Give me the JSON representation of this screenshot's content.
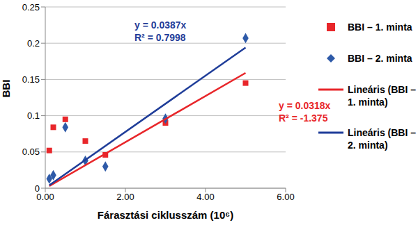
{
  "chart_data": {
    "type": "scatter",
    "x_label": "Fárasztási ciklusszám (10⁶)",
    "y_label": "BBI",
    "xlim": [
      0,
      6
    ],
    "xticks": [
      {
        "value": 0,
        "label": "0.00"
      },
      {
        "value": 2,
        "label": "2.00"
      },
      {
        "value": 4,
        "label": "4.00"
      },
      {
        "value": 6,
        "label": "6.00"
      }
    ],
    "ylim": [
      0,
      0.25
    ],
    "yticks": [
      0,
      0.05,
      0.1,
      0.15,
      0.2,
      0.25
    ],
    "grid": true,
    "legend": "right",
    "series": [
      {
        "name": "BBI – 1. minta",
        "type": "scatter",
        "marker": "square",
        "color": "#e8262a",
        "x": [
          0.1,
          0.2,
          0.5,
          1.0,
          1.5,
          3.0,
          5.0
        ],
        "values": [
          0.052,
          0.084,
          0.095,
          0.065,
          0.046,
          0.09,
          0.145
        ]
      },
      {
        "name": "BBI – 2. minta",
        "type": "scatter",
        "marker": "diamond",
        "color": "#2e5aa8",
        "x": [
          0.1,
          0.2,
          0.5,
          1.0,
          1.5,
          3.0,
          5.0
        ],
        "values": [
          0.013,
          0.018,
          0.084,
          0.038,
          0.03,
          0.096,
          0.207
        ]
      },
      {
        "name": "Lineáris (BBI – 1. minta)",
        "type": "line",
        "line_style": "solid",
        "color": "#e8262a",
        "x": [
          0.1,
          5.0
        ],
        "values": [
          0.003,
          0.159
        ]
      },
      {
        "name": "Lineáris (BBI – 2. minta)",
        "type": "line",
        "line_style": "solid",
        "color": "#1f3d99",
        "x": [
          0.1,
          5.0
        ],
        "values": [
          0.004,
          0.194
        ]
      }
    ],
    "annotations": [
      {
        "text": "y = 0.0387x",
        "color": "#1f3d99"
      },
      {
        "text": "R² = 0.7998",
        "color": "#1f3d99"
      },
      {
        "text": "y = 0.0318x",
        "color": "#e8262a"
      },
      {
        "text": "R² = -1.375",
        "color": "#e8262a"
      }
    ]
  }
}
